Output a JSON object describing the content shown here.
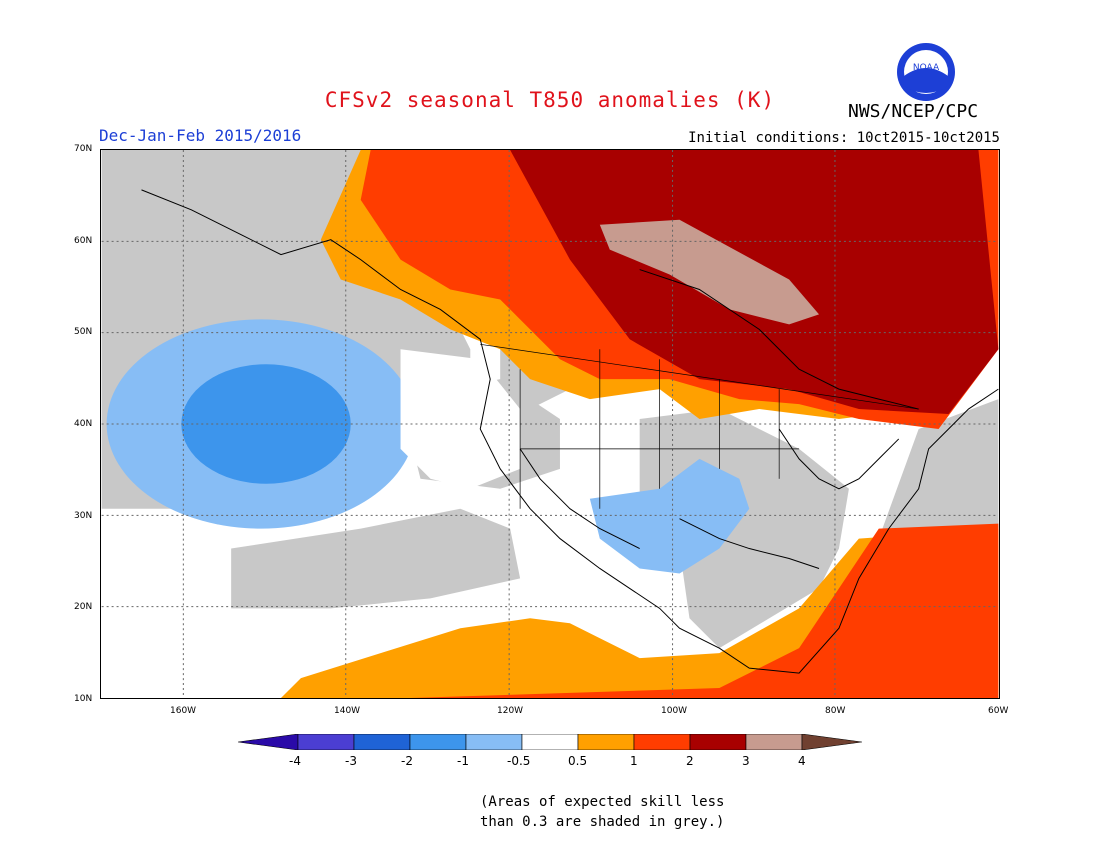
{
  "header": {
    "title": "CFSv2 seasonal T850 anomalies (K)",
    "season": "Dec-Jan-Feb 2015/2016",
    "initial_conditions": "Initial conditions: 10ct2015-10ct2015",
    "agency": "NWS/NCEP/CPC",
    "logo_text": "NOAA"
  },
  "map": {
    "projection": "lat-lon",
    "lon_range": [
      -175,
      -60
    ],
    "lat_range": [
      10,
      70
    ],
    "lat_labels": [
      "70N",
      "60N",
      "50N",
      "40N",
      "30N",
      "20N",
      "10N"
    ],
    "lon_labels": [
      "160W",
      "140W",
      "120W",
      "100W",
      "80W",
      "60W"
    ],
    "colors": {
      "grey": "#c8c8c8",
      "white": "#ffffff",
      "blue_light": "#87bdf5",
      "blue_mid": "#3d95ec",
      "orange": "#ffa000",
      "red_orange": "#ff3d00",
      "dark_red": "#a80000",
      "tan": "#c79b8f"
    }
  },
  "colorbar": {
    "labels": [
      "-4",
      "-3",
      "-2",
      "-1",
      "-0.5",
      "0.5",
      "1",
      "2",
      "3",
      "4"
    ],
    "colors": [
      "#2a0aa8",
      "#4b3ed2",
      "#1f63d6",
      "#3d95ec",
      "#87bdf5",
      "#ffffff",
      "#ffa000",
      "#ff3d00",
      "#a80000",
      "#c79b8f",
      "#704030"
    ]
  },
  "note": {
    "line1": "(Areas of expected skill less",
    "line2": "than 0.3 are shaded in grey.)"
  }
}
